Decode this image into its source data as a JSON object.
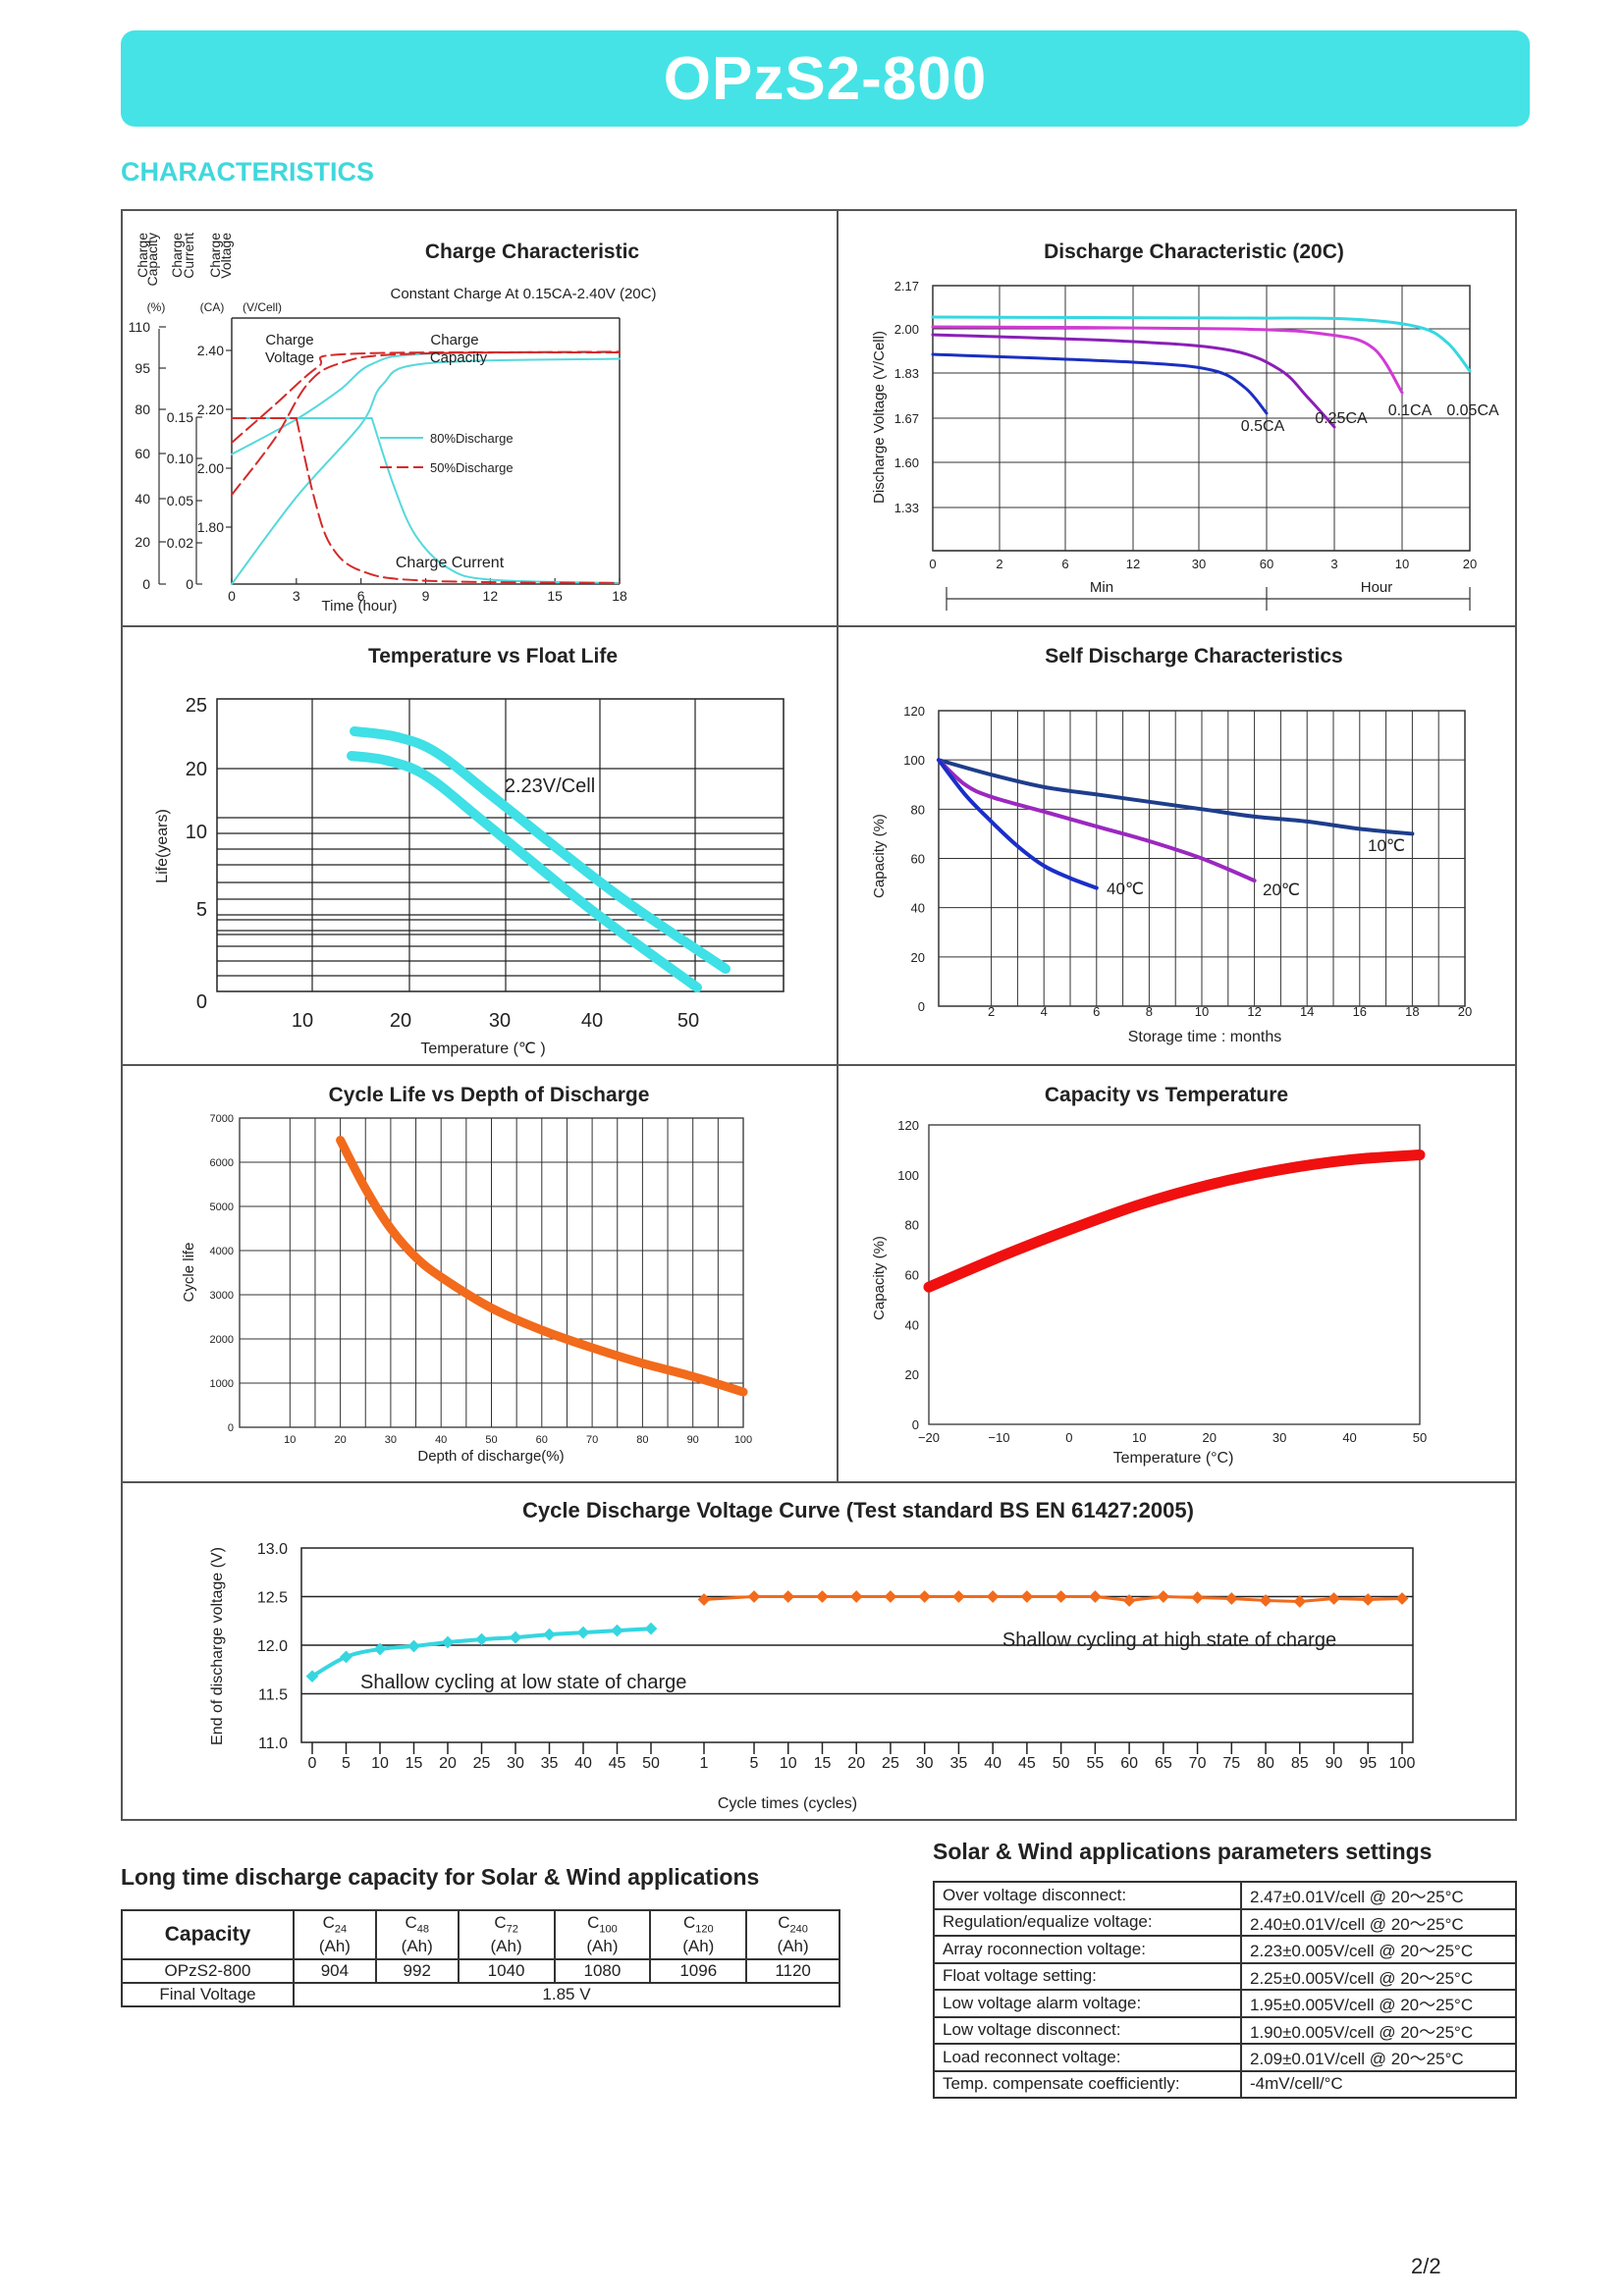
{
  "header": {
    "title": "OPzS2-800"
  },
  "section_title": "CHARACTERISTICS",
  "charts": {
    "charge": {
      "title": "Charge Characteristic",
      "subtitle": "Constant Charge At 0.15CA-2.40V  (20C)",
      "col1_label": "Charge Capacity",
      "col1_unit": "(%)",
      "col2_label": "Charge Current",
      "col2_unit": "(CA)",
      "col3_label": "Charge Voltage",
      "col3_unit": "(V/Cell)",
      "xlabel": "Time (hour)",
      "label_voltage": "Charge Voltage",
      "label_capacity": "Charge Capacity",
      "label_current": "Charge Current",
      "legend_80": "80%Discharge",
      "legend_50": "50%Discharge"
    },
    "discharge": {
      "title": "Discharge Characteristic (20C)",
      "ylabel": "Discharge Voltage (V/Cell)",
      "xlabel_min": "Min",
      "xlabel_hour": "Hour",
      "labels": [
        "0.5CA",
        "0.25CA",
        "0.1CA",
        "0.05CA"
      ]
    },
    "float_life": {
      "title": "Temperature vs Float Life",
      "ylabel": "Life(years)",
      "xlabel": "Temperature (℃ )",
      "annotation": "2.23V/Cell"
    },
    "self_discharge": {
      "title": "Self Discharge Characteristics",
      "ylabel": "Capacity (%)",
      "xlabel": "Storage time : months"
    },
    "cycle_life": {
      "title": "Cycle Life vs Depth of Discharge",
      "ylabel": "Cycle life",
      "xlabel": "Depth of discharge(%)"
    },
    "cap_temp": {
      "title": "Capacity vs Temperature",
      "ylabel": "Capacity (%)",
      "xlabel": "Temperature (°C)"
    },
    "cycle_voltage": {
      "title": "Cycle Discharge Voltage Curve  (Test standard BS EN 61427:2005)",
      "ylabel": "End of discharge voltage (V)",
      "xlabel": "Cycle times   (cycles)",
      "label_low": "Shallow cycling at low state of charge",
      "label_high": "Shallow cycling at high state of charge"
    }
  },
  "chart_data": [
    {
      "type": "line",
      "title": "Charge Characteristic",
      "subtitle": "Constant Charge At 0.15CA-2.40V  (20C)",
      "xlabel": "Time (hour)",
      "x_ticks": [
        0,
        3,
        6,
        9,
        12,
        15,
        18
      ],
      "y_left_capacity_ticks": [
        0,
        20,
        40,
        60,
        80,
        95,
        110
      ],
      "y_current_ticks": [
        0,
        0.02,
        0.05,
        0.1,
        0.15
      ],
      "y_voltage_ticks": [
        1.8,
        2.0,
        2.2,
        2.4
      ],
      "series": [
        {
          "name": "80%Discharge",
          "curves": {
            "voltage": [
              [
                0,
                2.05
              ],
              [
                3,
                2.17
              ],
              [
                5,
                2.27
              ],
              [
                6,
                2.35
              ],
              [
                8,
                2.39
              ],
              [
                18,
                2.4
              ]
            ],
            "capacity": [
              [
                0,
                0
              ],
              [
                6,
                65
              ],
              [
                8,
                90
              ],
              [
                12,
                96
              ],
              [
                18,
                97
              ]
            ],
            "current": [
              [
                0,
                0.15
              ],
              [
                6.5,
                0.15
              ],
              [
                8,
                0.09
              ],
              [
                9,
                0.04
              ],
              [
                12,
                0.01
              ],
              [
                18,
                0.003
              ]
            ]
          }
        },
        {
          "name": "50%Discharge",
          "curves": {
            "voltage": [
              [
                0,
                2.1
              ],
              [
                2,
                2.25
              ],
              [
                4,
                2.36
              ],
              [
                6,
                2.39
              ],
              [
                18,
                2.4
              ]
            ],
            "capacity": [
              [
                0,
                40
              ],
              [
                3,
                70
              ],
              [
                5,
                90
              ],
              [
                8,
                98
              ],
              [
                18,
                99
              ]
            ],
            "current": [
              [
                0,
                0.15
              ],
              [
                3,
                0.15
              ],
              [
                4,
                0.07
              ],
              [
                5,
                0.03
              ],
              [
                8,
                0.006
              ],
              [
                18,
                0.002
              ]
            ]
          }
        }
      ]
    },
    {
      "type": "line",
      "title": "Discharge Characteristic (20C)",
      "ylabel": "Discharge Voltage (V/Cell)",
      "y_ticks": [
        1.33,
        1.6,
        1.67,
        1.83,
        2.0,
        2.17
      ],
      "x_ticks_min": [
        0,
        2,
        6,
        12,
        30,
        60
      ],
      "x_ticks_hour": [
        3,
        10,
        20
      ],
      "series": [
        {
          "name": "0.5CA",
          "color": "#1a2fc0",
          "end_at": "60 Min",
          "start_v": 1.93
        },
        {
          "name": "0.25CA",
          "color": "#8a1fb8",
          "end_at": "3 Hour",
          "start_v": 1.99
        },
        {
          "name": "0.1CA",
          "color": "#d23ad6",
          "end_at": "10 Hour",
          "start_v": 2.01
        },
        {
          "name": "0.05CA",
          "color": "#34d8e0",
          "end_at": "20 Hour",
          "start_v": 2.03
        }
      ]
    },
    {
      "type": "line",
      "title": "Temperature vs Float Life",
      "ylabel": "Life(years)",
      "xlabel": "Temperature (℃ )",
      "y_ticks": [
        0,
        5,
        10,
        20,
        25
      ],
      "x_ticks": [
        10,
        20,
        30,
        40,
        50
      ],
      "series": [
        {
          "name": "upper",
          "points": [
            [
              15,
              22.5
            ],
            [
              20,
              22
            ],
            [
              25,
              20.5
            ],
            [
              30,
              18
            ],
            [
              40,
              10
            ],
            [
              50,
              3.5
            ],
            [
              53,
              2
            ]
          ]
        },
        {
          "name": "lower",
          "points": [
            [
              15,
              20.5
            ],
            [
              20,
              20
            ],
            [
              25,
              18.5
            ],
            [
              30,
              16
            ],
            [
              40,
              8
            ],
            [
              50,
              1.5
            ],
            [
              51,
              1
            ]
          ]
        }
      ],
      "annotation": "2.23V/Cell"
    },
    {
      "type": "line",
      "title": "Self Discharge Characteristics",
      "ylabel": "Capacity (%)",
      "xlabel": "Storage time : months",
      "y_ticks": [
        0,
        20,
        40,
        60,
        80,
        100,
        120
      ],
      "x_ticks": [
        2,
        4,
        6,
        8,
        10,
        12,
        14,
        16,
        18,
        20
      ],
      "series": [
        {
          "name": "10℃",
          "color": "#1e3d8c",
          "points": [
            [
              0,
              100
            ],
            [
              2,
              94
            ],
            [
              4,
              89
            ],
            [
              6,
              86
            ],
            [
              8,
              83
            ],
            [
              10,
              80
            ],
            [
              12,
              77
            ],
            [
              14,
              75
            ],
            [
              16,
              72
            ],
            [
              18,
              70
            ]
          ]
        },
        {
          "name": "20℃",
          "color": "#9b28c0",
          "points": [
            [
              0,
              100
            ],
            [
              1,
              90
            ],
            [
              2,
              85
            ],
            [
              4,
              79
            ],
            [
              6,
              73
            ],
            [
              8,
              67
            ],
            [
              10,
              60
            ],
            [
              12,
              51
            ]
          ]
        },
        {
          "name": "40℃",
          "color": "#1a2fc8",
          "points": [
            [
              0,
              100
            ],
            [
              1,
              86
            ],
            [
              2,
              75
            ],
            [
              3,
              65
            ],
            [
              4,
              57
            ],
            [
              5,
              52
            ],
            [
              6,
              48
            ]
          ]
        }
      ]
    },
    {
      "type": "line",
      "title": "Cycle Life vs Depth of Discharge",
      "ylabel": "Cycle life",
      "xlabel": "Depth of discharge(%)",
      "y_ticks": [
        0,
        1000,
        2000,
        3000,
        4000,
        5000,
        6000,
        7000
      ],
      "x_ticks": [
        10,
        20,
        30,
        40,
        50,
        60,
        70,
        80,
        90,
        100
      ],
      "series": [
        {
          "name": "cycle life",
          "color": "#f26a1b",
          "points": [
            [
              20,
              6500
            ],
            [
              25,
              5400
            ],
            [
              30,
              4500
            ],
            [
              35,
              3850
            ],
            [
              40,
              3400
            ],
            [
              50,
              2700
            ],
            [
              60,
              2200
            ],
            [
              70,
              1800
            ],
            [
              80,
              1450
            ],
            [
              90,
              1150
            ],
            [
              100,
              800
            ]
          ]
        }
      ]
    },
    {
      "type": "line",
      "title": "Capacity vs Temperature",
      "ylabel": "Capacity (%)",
      "xlabel": "Temperature (°C)",
      "y_ticks": [
        0,
        20,
        40,
        60,
        80,
        100,
        120
      ],
      "x_ticks": [
        -20,
        -10,
        0,
        10,
        20,
        30,
        40,
        50
      ],
      "series": [
        {
          "name": "capacity",
          "color": "#f01010",
          "points": [
            [
              -20,
              55
            ],
            [
              -10,
              67
            ],
            [
              0,
              78
            ],
            [
              10,
              88
            ],
            [
              20,
              96
            ],
            [
              30,
              102
            ],
            [
              40,
              106
            ],
            [
              50,
              108
            ]
          ]
        }
      ]
    },
    {
      "type": "line",
      "title": "Cycle Discharge Voltage Curve  (Test standard BS EN 61427:2005)",
      "ylabel": "End of discharge voltage (V)",
      "xlabel": "Cycle times   (cycles)",
      "y_ticks": [
        11.0,
        11.5,
        12.0,
        12.5,
        13.0
      ],
      "x_ticks_low": [
        0,
        5,
        10,
        15,
        20,
        25,
        30,
        35,
        40,
        45,
        50
      ],
      "x_ticks_high": [
        1,
        5,
        10,
        15,
        20,
        25,
        30,
        35,
        40,
        45,
        50,
        55,
        60,
        65,
        70,
        75,
        80,
        85,
        90,
        95,
        100
      ],
      "series": [
        {
          "name": "Shallow cycling at low state of charge",
          "color": "#35d6e0",
          "x": [
            0,
            5,
            10,
            15,
            20,
            25,
            30,
            35,
            40,
            45,
            50
          ],
          "values": [
            11.68,
            11.88,
            11.96,
            11.99,
            12.03,
            12.06,
            12.08,
            12.11,
            12.13,
            12.15,
            12.17
          ]
        },
        {
          "name": "Shallow cycling at high state of charge",
          "color": "#f26a1b",
          "x": [
            1,
            5,
            10,
            15,
            20,
            25,
            30,
            35,
            40,
            45,
            50,
            55,
            60,
            65,
            70,
            75,
            80,
            85,
            90,
            95,
            100
          ],
          "values": [
            12.47,
            12.5,
            12.5,
            12.5,
            12.5,
            12.5,
            12.5,
            12.5,
            12.5,
            12.5,
            12.5,
            12.5,
            12.46,
            12.5,
            12.49,
            12.48,
            12.46,
            12.45,
            12.48,
            12.47,
            12.48
          ]
        }
      ]
    },
    {
      "type": "table",
      "title": "Long time discharge capacity for Solar & Wind applications",
      "header": [
        "Capacity",
        "C24 (Ah)",
        "C48 (Ah)",
        "C72 (Ah)",
        "C100 (Ah)",
        "C120 (Ah)",
        "C240 (Ah)"
      ],
      "rows": [
        [
          "OPzS2-800",
          "904",
          "992",
          "1040",
          "1080",
          "1096",
          "1120"
        ],
        [
          "Final Voltage",
          "1.85 V"
        ]
      ]
    }
  ],
  "long_time_table": {
    "title": "Long time discharge capacity for Solar & Wind applications",
    "capacity_label": "Capacity",
    "cols": [
      {
        "c": "C",
        "sub": "24",
        "unit": "(Ah)"
      },
      {
        "c": "C",
        "sub": "48",
        "unit": "(Ah)"
      },
      {
        "c": "C",
        "sub": "72",
        "unit": "(Ah)"
      },
      {
        "c": "C",
        "sub": "100",
        "unit": "(Ah)"
      },
      {
        "c": "C",
        "sub": "120",
        "unit": "(Ah)"
      },
      {
        "c": "C",
        "sub": "240",
        "unit": "(Ah)"
      }
    ],
    "model": "OPzS2-800",
    "values": [
      "904",
      "992",
      "1040",
      "1080",
      "1096",
      "1120"
    ],
    "final_voltage_label": "Final Voltage",
    "final_voltage": "1.85 V"
  },
  "solar_wind_table": {
    "title": "Solar & Wind applications parameters settings",
    "rows": [
      [
        "Over voltage disconnect:",
        "2.47±0.01V/cell   @ 20～25°C"
      ],
      [
        "Regulation/equalize voltage:",
        "2.40±0.01V/cell   @ 20～25°C"
      ],
      [
        "Array roconnection voltage:",
        "2.23±0.005V/cell @ 20～25°C"
      ],
      [
        "Float voltage setting:",
        "2.25±0.005V/cell @ 20～25°C"
      ],
      [
        "Low voltage alarm voltage:",
        "1.95±0.005V/cell @ 20～25°C"
      ],
      [
        "Low voltage disconnect:",
        "1.90±0.005V/cell @ 20～25°C"
      ],
      [
        "Load reconnect voltage:",
        "2.09±0.01V/cell   @ 20～25°C"
      ],
      [
        "Temp. compensate coefficiently:",
        "-4mV/cell/°C"
      ]
    ]
  },
  "page_number": "2/2"
}
